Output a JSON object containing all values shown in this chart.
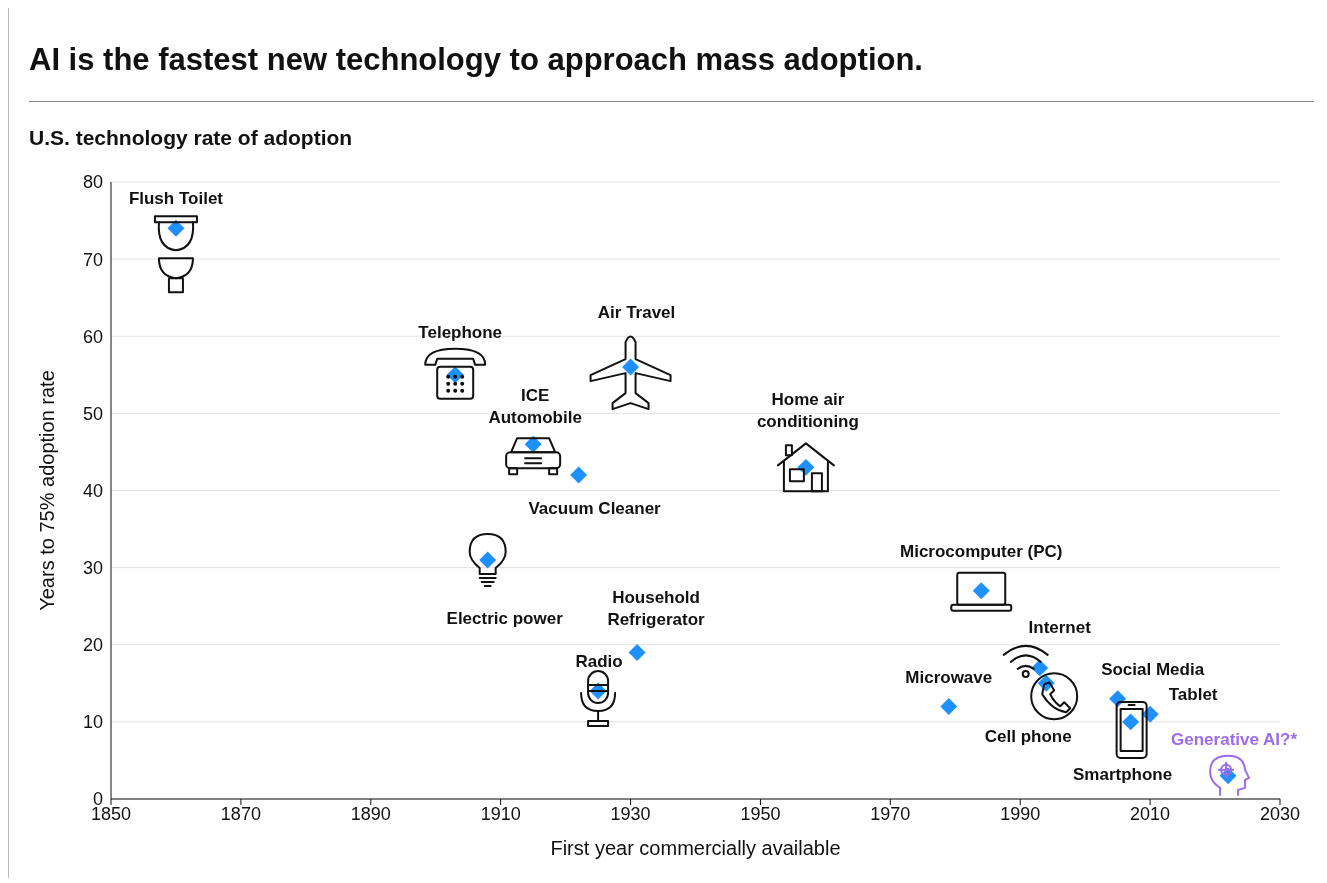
{
  "chart_data": {
    "type": "scatter",
    "title": "AI is the fastest new technology to approach mass adoption.",
    "subtitle": "U.S. technology rate of adoption",
    "xlabel": "First year commercially available",
    "ylabel": "Years to 75% adoption rate",
    "x": [
      1860,
      1903,
      1930,
      1915,
      1922,
      1957,
      1908,
      1931,
      1925,
      1984,
      1979,
      1993,
      1994,
      2005,
      2007,
      2010,
      2022
    ],
    "series": [
      {
        "color": "#1e90ff",
        "values": [
          74,
          55,
          56,
          46,
          42,
          43,
          31,
          19,
          14,
          27,
          12,
          17,
          15,
          13,
          10,
          11,
          3
        ]
      }
    ],
    "annotations": [
      {
        "text": "Flush Toilet",
        "x": 1860,
        "y": 74
      },
      {
        "text": "Telephone",
        "x": 1903,
        "y": 55
      },
      {
        "text": "Air Travel",
        "x": 1930,
        "y": 56
      },
      {
        "text": "ICE Automobile",
        "x": 1915,
        "y": 46
      },
      {
        "text": "Vacuum Cleaner",
        "x": 1922,
        "y": 42
      },
      {
        "text": "Home air conditioning",
        "x": 1957,
        "y": 43
      },
      {
        "text": "Electric power",
        "x": 1908,
        "y": 31
      },
      {
        "text": "Household Refrigerator",
        "x": 1931,
        "y": 19
      },
      {
        "text": "Radio",
        "x": 1925,
        "y": 14
      },
      {
        "text": "Microcomputer (PC)",
        "x": 1984,
        "y": 27
      },
      {
        "text": "Microwave",
        "x": 1979,
        "y": 12
      },
      {
        "text": "Internet",
        "x": 1993,
        "y": 17
      },
      {
        "text": "Cell phone",
        "x": 1994,
        "y": 15
      },
      {
        "text": "Social Media",
        "x": 2005,
        "y": 13
      },
      {
        "text": "Smartphone",
        "x": 2007,
        "y": 10
      },
      {
        "text": "Tablet",
        "x": 2010,
        "y": 11
      },
      {
        "text": "Generative AI?*",
        "x": 2022,
        "y": 3
      }
    ],
    "xlim": [
      1850,
      2030
    ],
    "xticks": [
      1850,
      1870,
      1890,
      1910,
      1930,
      1950,
      1970,
      1990,
      2010,
      2030
    ],
    "ylim": [
      0,
      80
    ],
    "yticks": [
      0,
      10,
      20,
      30,
      40,
      50,
      60,
      70,
      80
    ],
    "grid": "y",
    "legend": false,
    "marker": "diamond"
  }
}
